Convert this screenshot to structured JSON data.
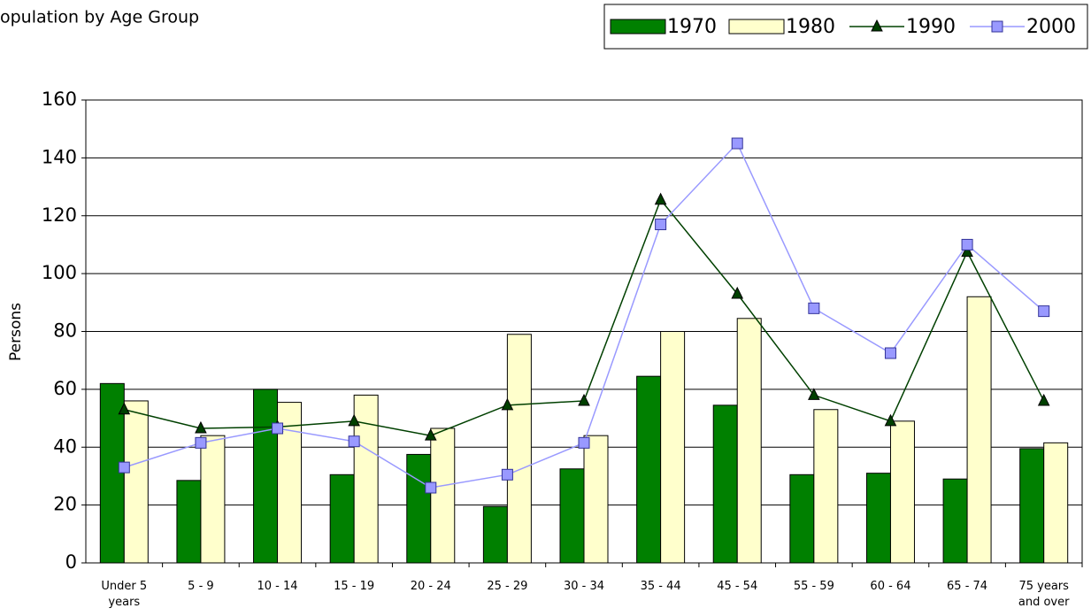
{
  "chart_data": {
    "type": "bar",
    "title": "opulation by Age Group",
    "y_label": "Persons",
    "categories": [
      "Under 5 years",
      "5 - 9",
      "10 - 14",
      "15 - 19",
      "20 - 24",
      "25 - 29",
      "30 - 34",
      "35 - 44",
      "45 - 54",
      "55 - 59",
      "60 - 64",
      "65 - 74",
      "75 years and over"
    ],
    "series": [
      {
        "name": "1970",
        "type": "bar",
        "color": "#008000",
        "values": [
          62,
          28.5,
          60,
          30.5,
          37.5,
          19.5,
          32.5,
          64.5,
          54.5,
          30.5,
          31,
          29,
          39.5
        ]
      },
      {
        "name": "1980",
        "type": "bar",
        "color": "#ffffcc",
        "values": [
          56,
          44,
          55.5,
          58,
          46.5,
          79,
          44,
          80,
          84.5,
          53,
          49,
          92,
          41.5
        ]
      },
      {
        "name": "1990",
        "type": "line",
        "color": "#004000",
        "values": [
          53,
          46.5,
          47,
          49,
          44,
          54.5,
          56,
          125.5,
          93,
          58,
          49,
          107.5,
          56
        ]
      },
      {
        "name": "2000",
        "type": "line",
        "color": "#9999ff",
        "values": [
          33,
          41.5,
          46.5,
          42,
          26,
          30.5,
          41.5,
          117,
          145,
          88,
          72.5,
          110,
          87
        ]
      }
    ],
    "ylim": [
      0,
      160
    ],
    "yticks": [
      0,
      20,
      40,
      60,
      80,
      100,
      120,
      140,
      160
    ],
    "grid": true,
    "legend": "top-right"
  }
}
